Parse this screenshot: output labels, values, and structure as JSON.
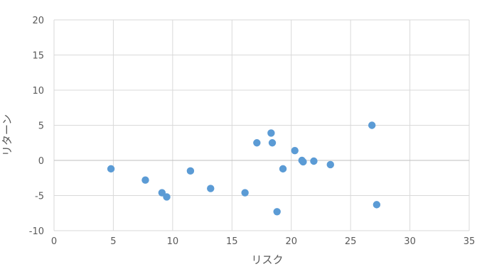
{
  "chart_data": {
    "type": "scatter",
    "title": "",
    "xlabel": "リスク",
    "ylabel": "リターン",
    "xlim": [
      0,
      35
    ],
    "ylim": [
      -10,
      20
    ],
    "xticks": [
      0,
      5,
      10,
      15,
      20,
      25,
      30,
      35
    ],
    "yticks": [
      -10,
      -5,
      0,
      5,
      10,
      15,
      20
    ],
    "grid": true,
    "legend": "none",
    "marker_color": "#5B9BD5",
    "series": [
      {
        "x": [
          4.8,
          7.7,
          9.1,
          9.5,
          11.5,
          13.2,
          16.1,
          17.1,
          18.3,
          18.4,
          18.8,
          19.3,
          20.3,
          20.9,
          21.0,
          21.9,
          23.3,
          26.8,
          27.2
        ],
        "y": [
          -1.2,
          -2.8,
          -4.6,
          -5.2,
          -1.5,
          -4.0,
          -4.6,
          2.5,
          3.9,
          2.5,
          -7.3,
          -1.2,
          1.4,
          0.0,
          -0.2,
          -0.1,
          -0.6,
          5.0,
          -6.3
        ]
      }
    ]
  }
}
